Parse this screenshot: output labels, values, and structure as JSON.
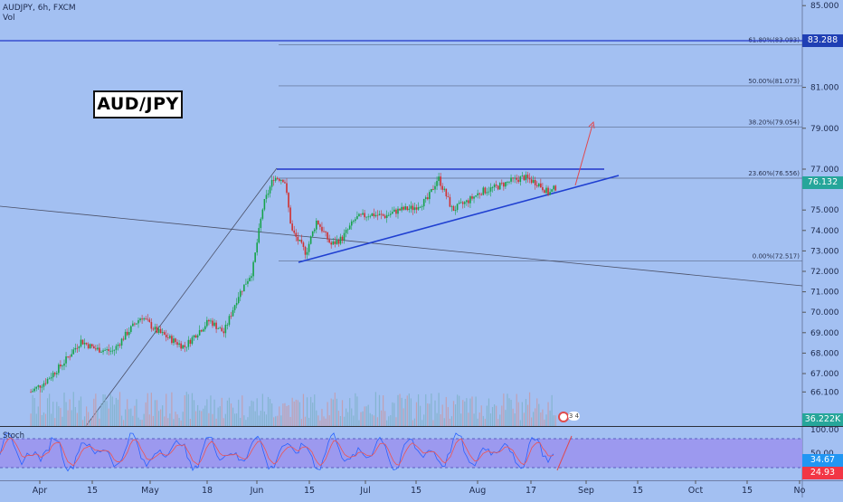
{
  "header": {
    "symbol_line": "AUDJPY, 6h, FXCM",
    "vol_label": "Vol",
    "title_box": "AUD/JPY"
  },
  "price_axis": {
    "labels": [
      "85.000",
      "81.000",
      "79.000",
      "77.000",
      "75.000",
      "74.000",
      "73.000",
      "72.000",
      "71.000",
      "70.000",
      "69.000",
      "68.000",
      "67.000",
      "66.100"
    ],
    "tags": [
      {
        "text": "83.288",
        "color": "#1f3fb4"
      },
      {
        "text": "76.132",
        "color": "#26a69a"
      },
      {
        "text": "36.222K",
        "color": "#26a69a"
      }
    ]
  },
  "stoch_axis": {
    "labels": [
      "100.00",
      "50.00"
    ],
    "tags": [
      {
        "text": "34.67",
        "color": "#2196f3"
      },
      {
        "text": "24.93",
        "color": "#f23645"
      }
    ]
  },
  "time_axis": [
    "Apr",
    "15",
    "May",
    "18",
    "Jun",
    "15",
    "Jul",
    "15",
    "Aug",
    "17",
    "Sep",
    "15",
    "Oct",
    "15",
    "No"
  ],
  "fib_levels": [
    {
      "label": "61.80%(83.093)",
      "value": 83.093
    },
    {
      "label": "50.00%(81.073)",
      "value": 81.073
    },
    {
      "label": "38.20%(79.054)",
      "value": 79.054
    },
    {
      "label": "23.60%(76.556)",
      "value": 76.556
    },
    {
      "label": "0.00%(72.517)",
      "value": 72.517
    }
  ],
  "stoch_label": "Stoch",
  "alert_badge": "3 4",
  "colors": {
    "background": "#a3c0f2",
    "up": "#16a34a",
    "down": "#d03030",
    "trendline": "#1f3fd1",
    "horizontal": "#2336c9",
    "stoch_band": "#9b95ee",
    "projection": "#e0484f"
  },
  "chart_data": {
    "type": "candlestick",
    "title": "AUDJPY, 6h, FXCM",
    "ylim": [
      65.9,
      85.3
    ],
    "x_ticks": [
      "Apr",
      "15",
      "May",
      "18",
      "Jun",
      "15",
      "Jul",
      "15",
      "Aug",
      "17",
      "Sep",
      "15",
      "Oct",
      "15",
      "No"
    ],
    "series": [
      {
        "name": "AUD/JPY",
        "price_points": [
          [
            "Mar 30",
            66.1
          ],
          [
            "Apr 3",
            66.6
          ],
          [
            "Apr 8",
            67.5
          ],
          [
            "Apr 13",
            68.6
          ],
          [
            "Apr 17",
            68.2
          ],
          [
            "Apr 22",
            68.1
          ],
          [
            "Apr 26",
            69.0
          ],
          [
            "Apr 30",
            69.8
          ],
          [
            "May 4",
            69.1
          ],
          [
            "May 8",
            68.7
          ],
          [
            "May 12",
            68.3
          ],
          [
            "May 15",
            68.9
          ],
          [
            "May 19",
            69.6
          ],
          [
            "May 23",
            69.0
          ],
          [
            "May 27",
            70.8
          ],
          [
            "May 31",
            72.0
          ],
          [
            "Jun 3",
            75.2
          ],
          [
            "Jun 6",
            76.6
          ],
          [
            "Jun 9",
            76.5
          ],
          [
            "Jun 11",
            74.0
          ],
          [
            "Jun 15",
            72.9
          ],
          [
            "Jun 18",
            74.5
          ],
          [
            "Jun 22",
            73.3
          ],
          [
            "Jun 25",
            73.6
          ],
          [
            "Jun 29",
            74.6
          ],
          [
            "Jul 3",
            74.8
          ],
          [
            "Jul 7",
            74.7
          ],
          [
            "Jul 11",
            75.0
          ],
          [
            "Jul 15",
            75.1
          ],
          [
            "Jul 19",
            75.5
          ],
          [
            "Jul 22",
            76.6
          ],
          [
            "Jul 26",
            75.0
          ],
          [
            "Jul 30",
            75.4
          ],
          [
            "Aug 3",
            75.9
          ],
          [
            "Aug 7",
            76.1
          ],
          [
            "Aug 11",
            76.4
          ],
          [
            "Aug 15",
            76.6
          ],
          [
            "Aug 19",
            76.3
          ],
          [
            "Aug 22",
            75.8
          ],
          [
            "Aug 24",
            76.13
          ]
        ]
      }
    ],
    "horizontal_lines": [
      83.288,
      77.0
    ],
    "trendlines": [
      {
        "from": [
          "Jun 14",
          72.5
        ],
        "to": [
          "Sep 5",
          76.6
        ]
      }
    ],
    "projection": {
      "from": [
        "Aug 29",
        76.3
      ],
      "to": [
        "Aug 31",
        79.0
      ]
    },
    "stoch": {
      "band": [
        20,
        80
      ],
      "last_k": 34.67,
      "last_d": 24.93
    }
  }
}
